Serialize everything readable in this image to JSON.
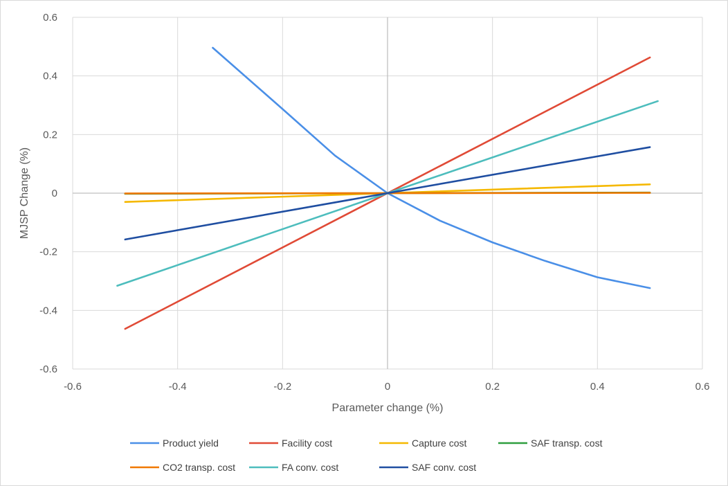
{
  "chart_data": {
    "type": "line",
    "title": "",
    "xlabel": "Parameter change (%)",
    "ylabel": "MJSP Change (%)",
    "xlim": [
      -0.6,
      0.6
    ],
    "ylim": [
      -0.6,
      0.6
    ],
    "xticks": [
      -0.6,
      -0.4,
      -0.2,
      0,
      0.2,
      0.4,
      0.6
    ],
    "yticks": [
      -0.6,
      -0.4,
      -0.2,
      0,
      0.2,
      0.4,
      0.6
    ],
    "xtick_labels": [
      "-0.6",
      "-0.4",
      "-0.2",
      "0",
      "0.2",
      "0.4",
      "0.6"
    ],
    "ytick_labels": [
      "-0.6",
      "-0.4",
      "-0.2",
      "0",
      "0.2",
      "0.4",
      "0.6"
    ],
    "grid": true,
    "legend_position": "bottom",
    "series": [
      {
        "name": "Product yield",
        "color": "#4a8fe7",
        "points": [
          [
            -0.333,
            0.496
          ],
          [
            -0.2,
            0.287
          ],
          [
            -0.1,
            0.128
          ],
          [
            0,
            0
          ],
          [
            0.1,
            -0.094
          ],
          [
            0.2,
            -0.168
          ],
          [
            0.3,
            -0.231
          ],
          [
            0.4,
            -0.287
          ],
          [
            0.5,
            -0.324
          ]
        ]
      },
      {
        "name": "Facility cost",
        "color": "#e04a36",
        "points": [
          [
            -0.5,
            -0.463
          ],
          [
            0,
            0
          ],
          [
            0.5,
            0.463
          ]
        ]
      },
      {
        "name": "Capture cost",
        "color": "#f5b800",
        "points": [
          [
            -0.5,
            -0.03
          ],
          [
            0,
            0
          ],
          [
            0.5,
            0.03
          ]
        ]
      },
      {
        "name": "SAF transp. cost",
        "color": "#2e9e3e",
        "points": [
          [
            -0.5,
            -0.002
          ],
          [
            0,
            0
          ],
          [
            0.5,
            0.002
          ]
        ]
      },
      {
        "name": "CO2 transp. cost",
        "color": "#f07800",
        "points": [
          [
            -0.5,
            -0.001
          ],
          [
            0,
            0
          ],
          [
            0.5,
            0.001
          ]
        ]
      },
      {
        "name": "FA conv. cost",
        "color": "#4dbdbd",
        "points": [
          [
            -0.515,
            -0.316
          ],
          [
            0,
            0
          ],
          [
            0.515,
            0.314
          ]
        ]
      },
      {
        "name": "SAF conv. cost",
        "color": "#1f4ea1",
        "points": [
          [
            -0.5,
            -0.158
          ],
          [
            0,
            0
          ],
          [
            0.5,
            0.157
          ]
        ]
      }
    ]
  }
}
